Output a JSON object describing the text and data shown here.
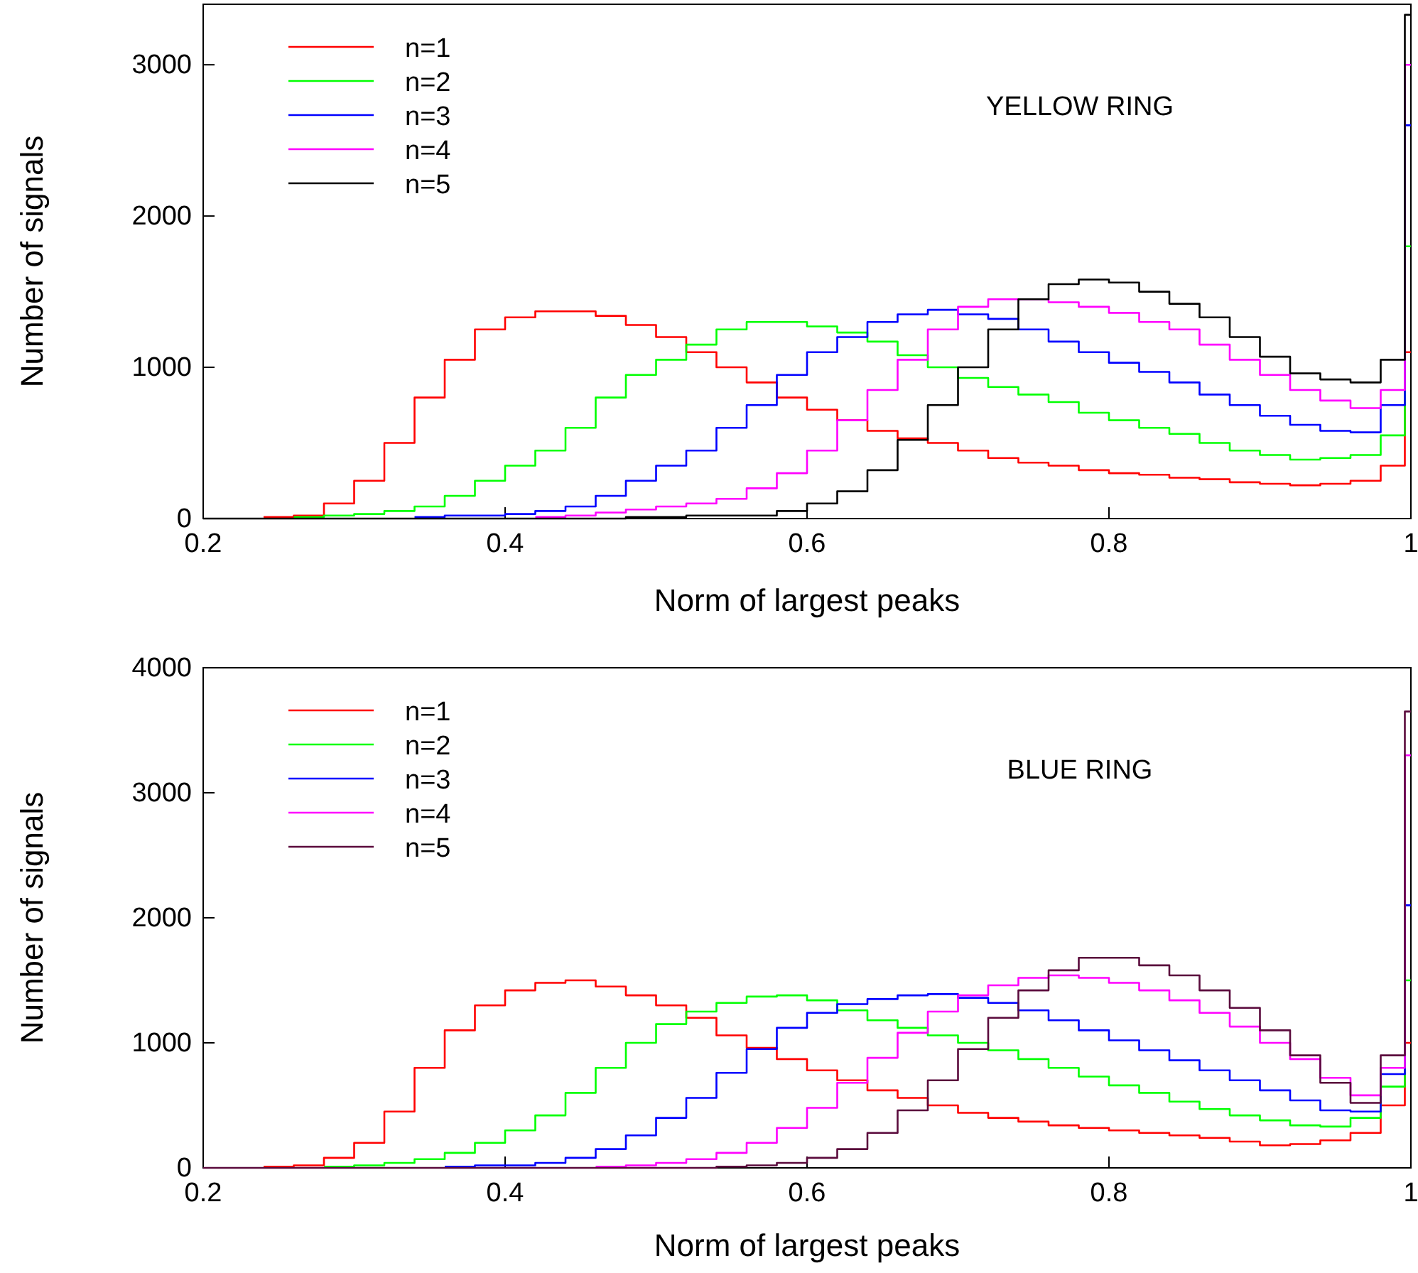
{
  "chart_data": [
    {
      "type": "step",
      "xlabel": "Norm of largest peaks",
      "ylabel": "Number of signals",
      "annotations": [
        "YELLOW RING"
      ],
      "legend": "top left",
      "grid": false,
      "x": [
        0.2,
        0.22,
        0.24,
        0.26,
        0.28,
        0.3,
        0.32,
        0.34,
        0.36,
        0.38,
        0.4,
        0.42,
        0.44,
        0.46,
        0.48,
        0.5,
        0.52,
        0.54,
        0.56,
        0.58,
        0.6,
        0.62,
        0.64,
        0.66,
        0.68,
        0.7,
        0.72,
        0.74,
        0.76,
        0.78,
        0.8,
        0.82,
        0.84,
        0.86,
        0.88,
        0.9,
        0.92,
        0.94,
        0.96,
        0.98,
        0.996
      ],
      "xlim": [
        0.2,
        1
      ],
      "xticks": [
        0.2,
        0.4,
        0.6,
        0.8,
        1
      ],
      "ylim": [
        0,
        3400
      ],
      "yticks": [
        0,
        1000,
        2000,
        3000
      ],
      "series": [
        {
          "name": "n=1",
          "color": "#ff0000",
          "values": [
            null,
            null,
            10,
            20,
            100,
            250,
            500,
            800,
            1050,
            1250,
            1330,
            1370,
            1370,
            1340,
            1280,
            1200,
            1100,
            1000,
            900,
            800,
            720,
            650,
            580,
            530,
            500,
            450,
            400,
            370,
            350,
            320,
            300,
            290,
            270,
            260,
            240,
            230,
            220,
            230,
            250,
            350,
            1100
          ]
        },
        {
          "name": "n=2",
          "color": "#00ff00",
          "values": [
            null,
            null,
            null,
            10,
            20,
            30,
            50,
            80,
            150,
            250,
            350,
            450,
            600,
            800,
            950,
            1050,
            1150,
            1250,
            1300,
            1300,
            1270,
            1230,
            1170,
            1080,
            1000,
            930,
            870,
            820,
            770,
            700,
            650,
            600,
            560,
            500,
            450,
            420,
            390,
            400,
            420,
            550,
            1800
          ]
        },
        {
          "name": "n=3",
          "color": "#0000ff",
          "values": [
            null,
            null,
            null,
            null,
            null,
            null,
            null,
            10,
            20,
            20,
            30,
            50,
            80,
            150,
            250,
            350,
            450,
            600,
            750,
            950,
            1100,
            1200,
            1300,
            1350,
            1380,
            1350,
            1320,
            1250,
            1170,
            1100,
            1030,
            970,
            900,
            820,
            750,
            680,
            620,
            580,
            570,
            750,
            2600
          ]
        },
        {
          "name": "n=4",
          "color": "#ff00ff",
          "values": [
            null,
            null,
            null,
            null,
            null,
            null,
            null,
            null,
            null,
            null,
            null,
            10,
            20,
            40,
            60,
            80,
            100,
            130,
            200,
            300,
            450,
            650,
            850,
            1050,
            1250,
            1400,
            1450,
            1450,
            1430,
            1400,
            1360,
            1300,
            1250,
            1150,
            1050,
            950,
            850,
            780,
            730,
            850,
            3000
          ]
        },
        {
          "name": "n=5",
          "color": "#000000",
          "values": [
            0,
            0,
            0,
            0,
            0,
            0,
            0,
            0,
            0,
            0,
            0,
            0,
            0,
            0,
            10,
            10,
            20,
            20,
            20,
            50,
            100,
            180,
            320,
            520,
            750,
            1000,
            1250,
            1450,
            1550,
            1580,
            1560,
            1500,
            1420,
            1330,
            1200,
            1070,
            960,
            920,
            900,
            1050,
            3330
          ]
        }
      ]
    },
    {
      "type": "step",
      "xlabel": "Norm of largest peaks",
      "ylabel": "Number of signals",
      "annotations": [
        "BLUE RING"
      ],
      "legend": "top left",
      "grid": false,
      "x": [
        0.2,
        0.22,
        0.24,
        0.26,
        0.28,
        0.3,
        0.32,
        0.34,
        0.36,
        0.38,
        0.4,
        0.42,
        0.44,
        0.46,
        0.48,
        0.5,
        0.52,
        0.54,
        0.56,
        0.58,
        0.6,
        0.62,
        0.64,
        0.66,
        0.68,
        0.7,
        0.72,
        0.74,
        0.76,
        0.78,
        0.8,
        0.82,
        0.84,
        0.86,
        0.88,
        0.9,
        0.92,
        0.94,
        0.96,
        0.98,
        0.996
      ],
      "xlim": [
        0.2,
        1
      ],
      "xticks": [
        0.2,
        0.4,
        0.6,
        0.8,
        1
      ],
      "ylim": [
        0,
        4000
      ],
      "yticks": [
        0,
        1000,
        2000,
        3000,
        4000
      ],
      "series": [
        {
          "name": "n=1",
          "color": "#ff0000",
          "values": [
            null,
            null,
            10,
            20,
            80,
            200,
            450,
            800,
            1100,
            1300,
            1420,
            1480,
            1500,
            1450,
            1380,
            1300,
            1200,
            1060,
            960,
            870,
            780,
            700,
            620,
            560,
            500,
            440,
            400,
            370,
            340,
            320,
            300,
            280,
            260,
            240,
            210,
            180,
            190,
            220,
            280,
            500,
            1000
          ]
        },
        {
          "name": "n=2",
          "color": "#00ff00",
          "values": [
            null,
            null,
            null,
            null,
            10,
            20,
            40,
            70,
            120,
            200,
            300,
            420,
            600,
            800,
            1000,
            1150,
            1250,
            1320,
            1370,
            1380,
            1340,
            1260,
            1180,
            1120,
            1060,
            1000,
            940,
            870,
            800,
            730,
            660,
            600,
            530,
            470,
            420,
            380,
            340,
            330,
            400,
            650,
            1500
          ]
        },
        {
          "name": "n=3",
          "color": "#0000ff",
          "values": [
            null,
            null,
            null,
            null,
            null,
            null,
            null,
            null,
            10,
            20,
            20,
            40,
            80,
            150,
            260,
            400,
            560,
            760,
            950,
            1120,
            1240,
            1310,
            1350,
            1380,
            1390,
            1360,
            1320,
            1260,
            1180,
            1100,
            1020,
            940,
            860,
            780,
            700,
            620,
            540,
            460,
            450,
            750,
            2100
          ]
        },
        {
          "name": "n=4",
          "color": "#ff00ff",
          "values": [
            null,
            null,
            null,
            null,
            null,
            null,
            null,
            null,
            null,
            null,
            null,
            null,
            null,
            10,
            20,
            40,
            70,
            120,
            200,
            320,
            480,
            680,
            880,
            1080,
            1250,
            1380,
            1460,
            1520,
            1540,
            1520,
            1480,
            1420,
            1340,
            1240,
            1130,
            1000,
            870,
            720,
            580,
            800,
            3300
          ]
        },
        {
          "name": "n=5",
          "color": "#5a0a3c",
          "values": [
            0,
            0,
            0,
            0,
            0,
            0,
            0,
            0,
            0,
            0,
            0,
            0,
            0,
            0,
            0,
            0,
            0,
            10,
            20,
            40,
            80,
            150,
            280,
            460,
            700,
            950,
            1200,
            1420,
            1580,
            1680,
            1680,
            1620,
            1540,
            1420,
            1280,
            1100,
            900,
            680,
            520,
            900,
            3650
          ]
        }
      ]
    }
  ]
}
